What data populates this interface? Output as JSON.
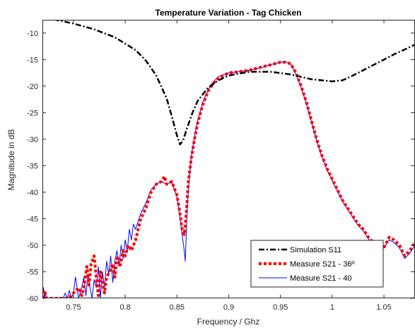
{
  "chart_data": {
    "type": "line",
    "title": "Temperature Variation - Tag Chicken",
    "xlabel": "Frequency / Ghz",
    "ylabel": "Magnitude in dB",
    "xlim": [
      0.72,
      1.08
    ],
    "ylim": [
      -60,
      -7.5
    ],
    "x_ticks": [
      0.75,
      0.8,
      0.85,
      0.9,
      0.95,
      1,
      1.05
    ],
    "x_tick_labels": [
      "0.75",
      "0.8",
      "0.85",
      "0.9",
      "0.95",
      "1",
      "1.05"
    ],
    "y_ticks": [
      -60,
      -55,
      -50,
      -45,
      -40,
      -35,
      -30,
      -25,
      -20,
      -15,
      -10
    ],
    "y_tick_labels": [
      "-60",
      "-55",
      "-50",
      "-45",
      "-40",
      "-35",
      "-30",
      "-25",
      "-20",
      "-15",
      "-10"
    ],
    "grid": false,
    "legend_position": "bottom-right",
    "series": [
      {
        "name": "Simulation S11",
        "color": "#000000",
        "style": "dash-dot",
        "x": [
          0.72,
          0.75,
          0.77,
          0.79,
          0.81,
          0.82,
          0.83,
          0.84,
          0.845,
          0.85,
          0.853,
          0.856,
          0.86,
          0.865,
          0.87,
          0.88,
          0.89,
          0.9,
          0.92,
          0.94,
          0.96,
          0.98,
          1.0,
          1.01,
          1.02,
          1.04,
          1.06,
          1.08
        ],
        "y": [
          -7.0,
          -8.2,
          -9.3,
          -10.8,
          -13.2,
          -15.2,
          -18.0,
          -22.3,
          -25.7,
          -29.3,
          -31.0,
          -30.2,
          -27.8,
          -25.0,
          -22.8,
          -20.3,
          -18.9,
          -18.0,
          -17.3,
          -17.3,
          -17.8,
          -18.7,
          -19.1,
          -18.9,
          -18.0,
          -16.0,
          -14.0,
          -12.2
        ]
      },
      {
        "name": "Measure S21 - 36º",
        "color": "#ff0000",
        "style": "dotted",
        "x": [
          0.72,
          0.722,
          0.724,
          0.726,
          0.728,
          0.73,
          0.735,
          0.74,
          0.745,
          0.75,
          0.755,
          0.758,
          0.76,
          0.763,
          0.765,
          0.767,
          0.77,
          0.772,
          0.774,
          0.776,
          0.778,
          0.78,
          0.782,
          0.785,
          0.788,
          0.79,
          0.792,
          0.795,
          0.798,
          0.8,
          0.803,
          0.806,
          0.81,
          0.815,
          0.82,
          0.825,
          0.83,
          0.835,
          0.838,
          0.84,
          0.845,
          0.85,
          0.853,
          0.855,
          0.857,
          0.859,
          0.861,
          0.864,
          0.867,
          0.87,
          0.875,
          0.88,
          0.885,
          0.89,
          0.9,
          0.91,
          0.92,
          0.93,
          0.94,
          0.95,
          0.955,
          0.96,
          0.965,
          0.97,
          0.975,
          0.98,
          0.985,
          0.99,
          0.995,
          1.0,
          1.005,
          1.01,
          1.015,
          1.02,
          1.025,
          1.03,
          1.035,
          1.04,
          1.045,
          1.05,
          1.055,
          1.06,
          1.065,
          1.07,
          1.075,
          1.08
        ],
        "y": [
          -60.0,
          -58.5,
          -60.0,
          -60.0,
          -60.0,
          -60.0,
          -60.0,
          -60.0,
          -60.0,
          -59.0,
          -58.0,
          -59.5,
          -58.0,
          -54.0,
          -57.5,
          -53.5,
          -52.0,
          -56.0,
          -59.5,
          -55.0,
          -57.0,
          -59.0,
          -56.0,
          -55.0,
          -53.5,
          -56.0,
          -52.0,
          -54.0,
          -51.0,
          -52.0,
          -50.0,
          -51.0,
          -49.0,
          -45.0,
          -43.0,
          -40.0,
          -38.5,
          -38.0,
          -37.0,
          -38.5,
          -38.0,
          -40.5,
          -44.0,
          -47.0,
          -48.0,
          -44.0,
          -38.0,
          -33.5,
          -30.0,
          -27.0,
          -23.5,
          -21.0,
          -19.5,
          -18.5,
          -17.5,
          -17.3,
          -17.0,
          -16.5,
          -16.0,
          -15.5,
          -15.5,
          -15.8,
          -17.5,
          -20.0,
          -23.0,
          -26.5,
          -30.0,
          -33.0,
          -35.5,
          -37.5,
          -39.5,
          -41.5,
          -43.0,
          -44.5,
          -46.0,
          -47.0,
          -48.5,
          -49.5,
          -51.0,
          -50.5,
          -48.5,
          -49.0,
          -50.0,
          -52.0,
          -51.0,
          -49.5
        ]
      },
      {
        "name": "Measure S21 - 40",
        "color": "#0000ff",
        "style": "solid",
        "x": [
          0.72,
          0.721,
          0.722,
          0.723,
          0.724,
          0.726,
          0.73,
          0.735,
          0.74,
          0.742,
          0.744,
          0.746,
          0.748,
          0.75,
          0.752,
          0.755,
          0.758,
          0.76,
          0.762,
          0.764,
          0.766,
          0.768,
          0.77,
          0.772,
          0.774,
          0.776,
          0.778,
          0.78,
          0.782,
          0.784,
          0.786,
          0.788,
          0.79,
          0.792,
          0.794,
          0.796,
          0.798,
          0.8,
          0.802,
          0.804,
          0.806,
          0.808,
          0.81,
          0.815,
          0.82,
          0.825,
          0.83,
          0.835,
          0.84,
          0.845,
          0.85,
          0.853,
          0.855,
          0.857,
          0.858,
          0.859,
          0.86,
          0.862,
          0.864,
          0.867,
          0.87,
          0.875,
          0.88,
          0.885,
          0.89,
          0.9,
          0.91,
          0.92,
          0.93,
          0.94,
          0.95,
          0.955,
          0.96,
          0.965,
          0.97,
          0.975,
          0.98,
          0.985,
          0.99,
          0.995,
          1.0,
          1.005,
          1.01,
          1.015,
          1.02,
          1.025,
          1.03,
          1.035,
          1.04,
          1.045,
          1.05,
          1.055,
          1.06,
          1.065,
          1.07,
          1.075,
          1.08
        ],
        "y": [
          -60.0,
          -58.0,
          -60.0,
          -59.0,
          -60.0,
          -60.0,
          -60.0,
          -60.0,
          -60.0,
          -59.0,
          -60.0,
          -58.5,
          -60.0,
          -59.0,
          -56.0,
          -60.0,
          -58.0,
          -56.0,
          -59.5,
          -55.5,
          -58.0,
          -60.0,
          -56.5,
          -58.0,
          -54.0,
          -60.0,
          -55.0,
          -58.0,
          -53.0,
          -55.5,
          -52.0,
          -57.0,
          -53.0,
          -51.0,
          -54.0,
          -50.0,
          -52.5,
          -49.0,
          -51.0,
          -47.0,
          -49.0,
          -46.0,
          -47.0,
          -44.0,
          -42.0,
          -39.5,
          -38.5,
          -38.0,
          -38.5,
          -38.0,
          -41.0,
          -45.0,
          -48.0,
          -51.0,
          -53.0,
          -48.0,
          -43.0,
          -37.0,
          -33.0,
          -29.5,
          -26.5,
          -23.0,
          -20.8,
          -19.2,
          -18.2,
          -17.5,
          -17.3,
          -17.0,
          -16.6,
          -16.0,
          -15.5,
          -15.4,
          -15.8,
          -17.8,
          -20.3,
          -23.3,
          -26.8,
          -30.3,
          -33.3,
          -35.8,
          -37.8,
          -39.8,
          -41.8,
          -43.3,
          -44.8,
          -46.3,
          -47.3,
          -48.8,
          -49.8,
          -51.0,
          -50.5,
          -49.0,
          -49.5,
          -50.5,
          -52.5,
          -51.5,
          -50.0
        ]
      }
    ]
  }
}
